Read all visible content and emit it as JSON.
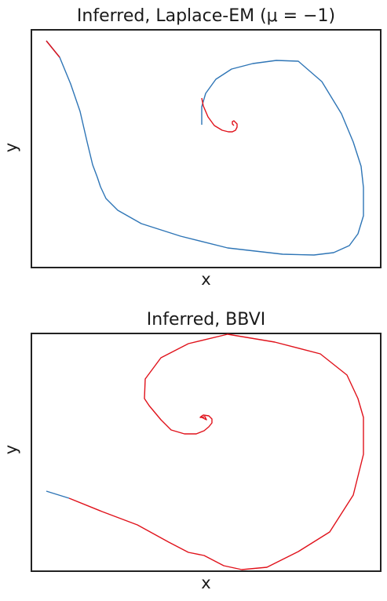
{
  "chart_data": [
    {
      "type": "line",
      "title": "Inferred, Laplace-EM (μ = −1)",
      "xlabel": "x",
      "ylabel": "y",
      "xlim": [
        0,
        445
      ],
      "ylim": [
        0,
        303
      ],
      "grid": false,
      "legend": "none",
      "series": [
        {
          "color": "#2e75b6",
          "x": [
            19,
            36,
            50,
            62,
            71,
            78,
            84,
            88,
            95,
            110,
            140,
            190,
            250,
            320,
            360,
            385,
            405,
            416,
            423,
            423,
            420,
            410,
            395,
            370,
            340,
            312,
            282,
            255,
            235,
            222,
            217,
            217
          ],
          "y": [
            289,
            268,
            234,
            199,
            160,
            131,
            115,
            103,
            88,
            73,
            56,
            40,
            25,
            17,
            16,
            19,
            28,
            43,
            66,
            102,
            129,
            160,
            196,
            237,
            263,
            264,
            260,
            253,
            240,
            222,
            205,
            182
          ]
        },
        {
          "color": "#e0121b",
          "x": [
            19,
            36
          ],
          "y": [
            289,
            268
          ]
        },
        {
          "color": "#e0121b",
          "x": [
            217,
            219,
            225,
            233,
            243,
            251,
            256,
            260,
            262,
            262,
            258,
            256,
            256,
            258
          ],
          "y": [
            216,
            206,
            192,
            181,
            175,
            173,
            173,
            175,
            179,
            183,
            187,
            186,
            183,
            181
          ]
        }
      ]
    },
    {
      "type": "line",
      "title": "Inferred, BBVI",
      "xlabel": "x",
      "ylabel": "y",
      "xlim": [
        0,
        445
      ],
      "ylim": [
        0,
        303
      ],
      "grid": false,
      "legend": "none",
      "series": [
        {
          "color": "#2e75b6",
          "x": [
            19,
            48
          ],
          "y": [
            102,
            93
          ]
        },
        {
          "color": "#e0121b",
          "x": [
            48,
            90,
            135,
            175,
            200,
            220,
            245,
            268,
            300,
            340,
            380,
            410,
            423,
            423,
            416,
            402,
            368,
            310,
            250,
            200,
            165,
            145,
            144,
            150,
            165,
            178,
            195,
            210,
            220,
            226,
            230,
            230,
            226,
            219,
            216,
            215,
            217,
            221,
            223,
            219,
            216
          ],
          "y": [
            93,
            76,
            59,
            37,
            24,
            20,
            7,
            2,
            5,
            25,
            50,
            97,
            149,
            196,
            220,
            250,
            277,
            292,
            302,
            290,
            272,
            245,
            220,
            211,
            193,
            180,
            175,
            175,
            179,
            184,
            189,
            194,
            198,
            199,
            197,
            196,
            196,
            197,
            193,
            195,
            197
          ]
        }
      ]
    }
  ]
}
